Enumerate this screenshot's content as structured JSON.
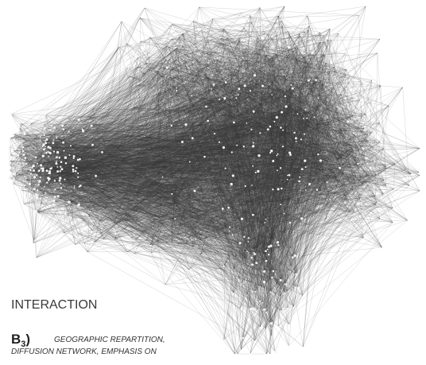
{
  "labels": {
    "section": "INTERACTION",
    "panel_letter": "B",
    "panel_subscript": "3",
    "panel_paren": ")",
    "caption_lines": [
      "GEOGRAPHIC REPARTITION,",
      "DIFFUSION NETWORK, EMPHASIS ON"
    ]
  }
}
